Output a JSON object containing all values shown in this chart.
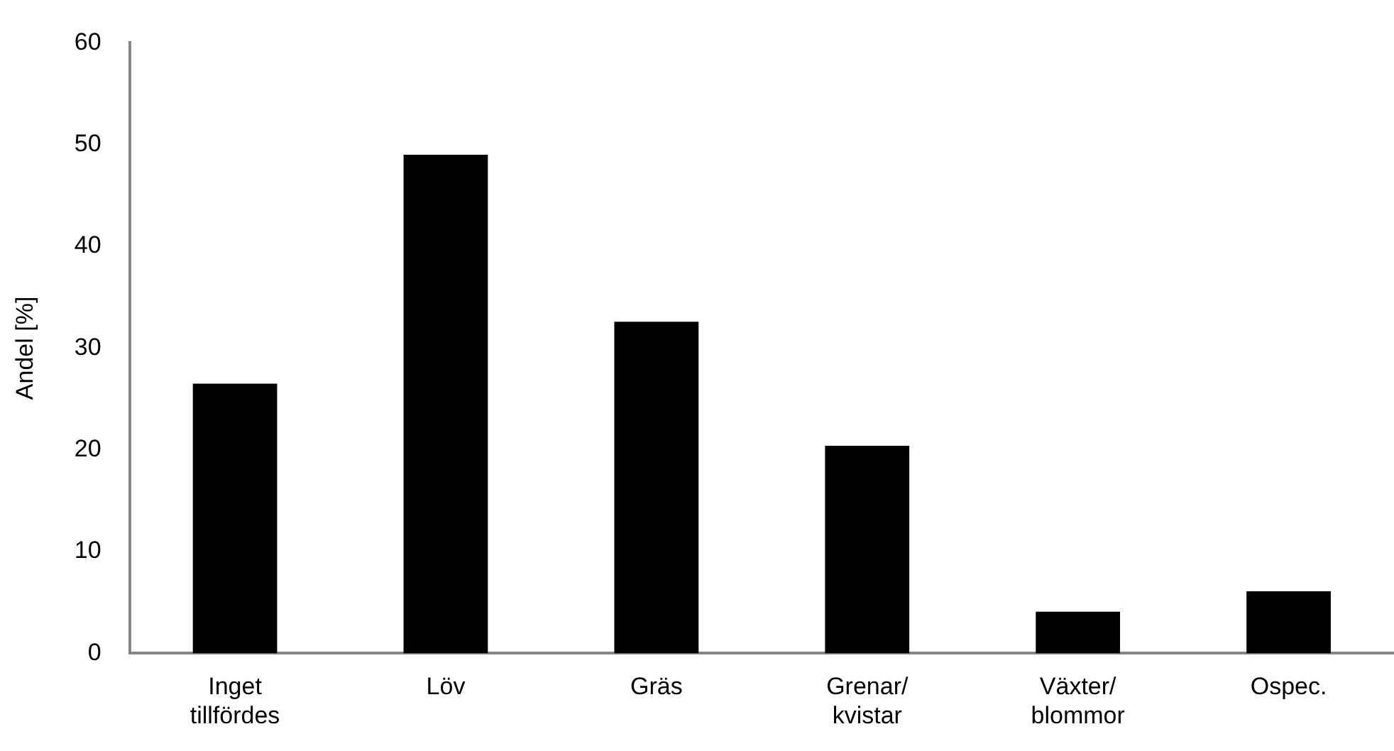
{
  "chart_data": {
    "type": "bar",
    "ylabel": "Andel [%]",
    "categories": [
      "Inget tillfördes",
      "Löv",
      "Gräs",
      "Grenar/kvistar",
      "Växter/blommor",
      "Ospec."
    ],
    "values": [
      26.5,
      49.0,
      32.6,
      20.4,
      4.1,
      6.1
    ],
    "color": "#000000",
    "ylim": [
      0,
      60
    ],
    "yticks": [
      0,
      10,
      20,
      30,
      40,
      50,
      60
    ],
    "grid": false,
    "legend": false
  }
}
